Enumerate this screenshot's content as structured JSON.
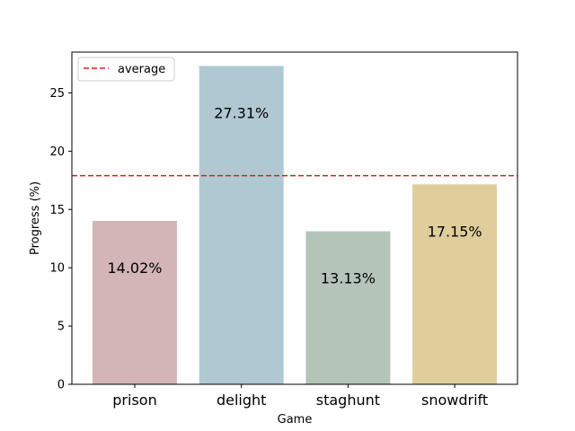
{
  "chart_data": {
    "type": "bar",
    "xlabel": "Game",
    "ylabel": "Progress (%)",
    "categories": [
      "prison",
      "delight",
      "staghunt",
      "snowdrift"
    ],
    "values": [
      14.02,
      27.31,
      13.13,
      17.15
    ],
    "value_labels": [
      "14.02%",
      "27.31%",
      "13.13%",
      "17.15%"
    ],
    "bar_colors": [
      "#d3b5b6",
      "#b0c8d1",
      "#b5c4b9",
      "#dfce9b"
    ],
    "average": {
      "label": "average",
      "value": 17.9,
      "color": "#e41a1c"
    },
    "ylim": [
      0,
      28.5
    ],
    "yticks": [
      0,
      5,
      10,
      15,
      20,
      25
    ],
    "grid": false,
    "legend": {
      "position": "top-left",
      "entries": [
        "average"
      ]
    }
  }
}
